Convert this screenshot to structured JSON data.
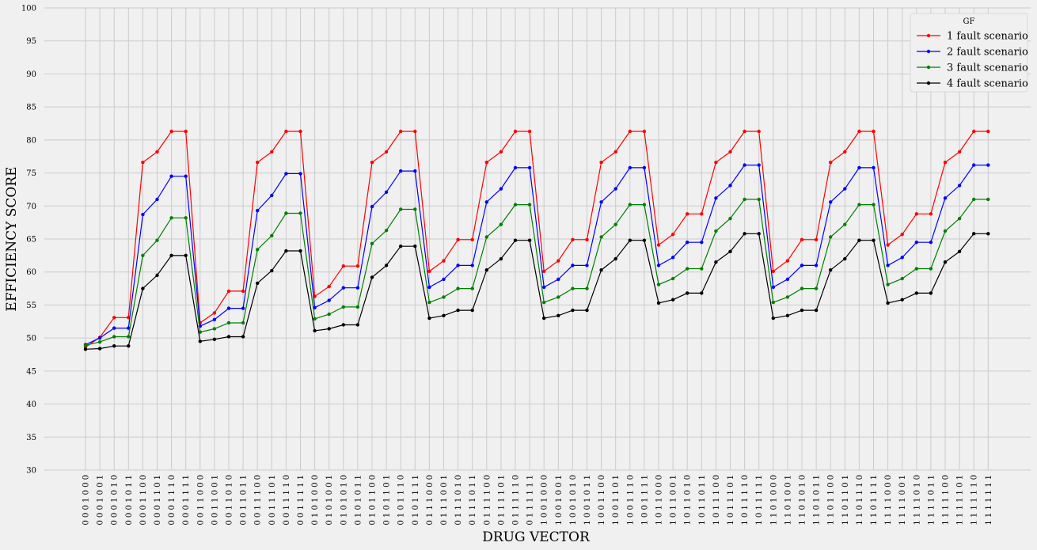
{
  "chart_data": {
    "type": "line",
    "xlabel": "DRUG VECTOR",
    "ylabel": "EFFICIENCY SCORE",
    "ylim": [
      30,
      100
    ],
    "yticks": [
      30,
      35,
      40,
      45,
      50,
      55,
      60,
      65,
      70,
      75,
      80,
      85,
      90,
      95,
      100
    ],
    "grid": true,
    "legend": {
      "title": "GF",
      "placement": "top-right"
    },
    "categories": [
      "0 0 0 1 0 0 0",
      "0 0 0 1 0 0 1",
      "0 0 0 1 0 1 0",
      "0 0 0 1 0 1 1",
      "0 0 0 1 1 0 0",
      "0 0 0 1 1 0 1",
      "0 0 0 1 1 1 0",
      "0 0 0 1 1 1 1",
      "0 0 1 1 0 0 0",
      "0 0 1 1 0 0 1",
      "0 0 1 1 0 1 0",
      "0 0 1 1 0 1 1",
      "0 0 1 1 1 0 0",
      "0 0 1 1 1 0 1",
      "0 0 1 1 1 1 0",
      "0 0 1 1 1 1 1",
      "0 1 0 1 0 0 0",
      "0 1 0 1 0 0 1",
      "0 1 0 1 0 1 0",
      "0 1 0 1 0 1 1",
      "0 1 0 1 1 0 0",
      "0 1 0 1 1 0 1",
      "0 1 0 1 1 1 0",
      "0 1 0 1 1 1 1",
      "0 1 1 1 0 0 0",
      "0 1 1 1 0 0 1",
      "0 1 1 1 0 1 0",
      "0 1 1 1 0 1 1",
      "0 1 1 1 1 0 0",
      "0 1 1 1 1 0 1",
      "0 1 1 1 1 1 0",
      "0 1 1 1 1 1 1",
      "1 0 0 1 0 0 0",
      "1 0 0 1 0 0 1",
      "1 0 0 1 0 1 0",
      "1 0 0 1 0 1 1",
      "1 0 0 1 1 0 0",
      "1 0 0 1 1 0 1",
      "1 0 0 1 1 1 0",
      "1 0 0 1 1 1 1",
      "1 0 1 1 0 0 0",
      "1 0 1 1 0 0 1",
      "1 0 1 1 0 1 0",
      "1 0 1 1 0 1 1",
      "1 0 1 1 1 0 0",
      "1 0 1 1 1 0 1",
      "1 0 1 1 1 1 0",
      "1 0 1 1 1 1 1",
      "1 1 0 1 0 0 0",
      "1 1 0 1 0 0 1",
      "1 1 0 1 0 1 0",
      "1 1 0 1 0 1 1",
      "1 1 0 1 1 0 0",
      "1 1 0 1 1 0 1",
      "1 1 0 1 1 1 0",
      "1 1 0 1 1 1 1",
      "1 1 1 1 0 0 0",
      "1 1 1 1 0 0 1",
      "1 1 1 1 0 1 0",
      "1 1 1 1 0 1 1",
      "1 1 1 1 1 0 0",
      "1 1 1 1 1 0 1",
      "1 1 1 1 1 1 0",
      "1 1 1 1 1 1 1"
    ],
    "series": [
      {
        "name": "1 fault scenario",
        "color": "#ff0000",
        "values": [
          48.6,
          50.1,
          53.1,
          53.1,
          76.6,
          78.2,
          81.3,
          81.3,
          52.3,
          53.8,
          57.1,
          57.1,
          76.6,
          78.2,
          81.3,
          81.3,
          56.3,
          57.8,
          60.9,
          60.9,
          76.6,
          78.2,
          81.3,
          81.3,
          60.1,
          61.7,
          64.9,
          64.9,
          76.6,
          78.2,
          81.3,
          81.3,
          60.1,
          61.7,
          64.9,
          64.9,
          76.6,
          78.2,
          81.3,
          81.3,
          64.1,
          65.7,
          68.8,
          68.8,
          76.6,
          78.2,
          81.3,
          81.3,
          60.1,
          61.7,
          64.9,
          64.9,
          76.6,
          78.2,
          81.3,
          81.3,
          64.1,
          65.7,
          68.8,
          68.8,
          76.6,
          78.2,
          81.3,
          81.3
        ]
      },
      {
        "name": "2 fault scenario",
        "color": "#0000ff",
        "values": [
          49.0,
          50.0,
          51.5,
          51.5,
          68.7,
          71.0,
          74.5,
          74.5,
          51.8,
          52.8,
          54.5,
          54.5,
          69.3,
          71.6,
          74.9,
          74.9,
          54.6,
          55.7,
          57.6,
          57.6,
          69.9,
          72.1,
          75.3,
          75.3,
          57.7,
          58.9,
          61.0,
          61.0,
          70.6,
          72.6,
          75.8,
          75.8,
          57.7,
          58.9,
          61.0,
          61.0,
          70.6,
          72.6,
          75.8,
          75.8,
          61.0,
          62.2,
          64.5,
          64.5,
          71.2,
          73.1,
          76.2,
          76.2,
          57.7,
          58.9,
          61.0,
          61.0,
          70.6,
          72.6,
          75.8,
          75.8,
          61.0,
          62.2,
          64.5,
          64.5,
          71.2,
          73.1,
          76.2,
          76.2
        ]
      },
      {
        "name": "3 fault scenario",
        "color": "#008000",
        "values": [
          48.9,
          49.4,
          50.2,
          50.2,
          62.5,
          64.8,
          68.2,
          68.2,
          50.9,
          51.4,
          52.3,
          52.3,
          63.4,
          65.5,
          68.9,
          68.9,
          52.9,
          53.6,
          54.7,
          54.7,
          64.3,
          66.3,
          69.5,
          69.5,
          55.4,
          56.2,
          57.5,
          57.5,
          65.3,
          67.2,
          70.2,
          70.2,
          55.4,
          56.2,
          57.5,
          57.5,
          65.3,
          67.2,
          70.2,
          70.2,
          58.1,
          59.0,
          60.5,
          60.5,
          66.2,
          68.1,
          71.0,
          71.0,
          55.4,
          56.2,
          57.5,
          57.5,
          65.3,
          67.2,
          70.2,
          70.2,
          58.1,
          59.0,
          60.5,
          60.5,
          66.2,
          68.1,
          71.0,
          71.0
        ]
      },
      {
        "name": "4 fault scenario",
        "color": "#000000",
        "values": [
          48.3,
          48.4,
          48.8,
          48.8,
          57.5,
          59.5,
          62.5,
          62.5,
          49.5,
          49.8,
          50.2,
          50.2,
          58.3,
          60.2,
          63.2,
          63.2,
          51.1,
          51.4,
          52.0,
          52.0,
          59.2,
          61.0,
          63.9,
          63.9,
          53.0,
          53.4,
          54.2,
          54.2,
          60.3,
          62.0,
          64.8,
          64.8,
          53.0,
          53.4,
          54.2,
          54.2,
          60.3,
          62.0,
          64.8,
          64.8,
          55.3,
          55.8,
          56.8,
          56.8,
          61.5,
          63.1,
          65.8,
          65.8,
          53.0,
          53.4,
          54.2,
          54.2,
          60.3,
          62.0,
          64.8,
          64.8,
          55.3,
          55.8,
          56.8,
          56.8,
          61.5,
          63.1,
          65.8,
          65.8
        ]
      }
    ]
  }
}
